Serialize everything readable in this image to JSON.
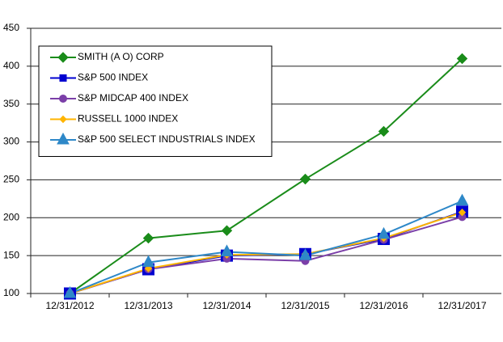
{
  "chart_data": {
    "type": "line",
    "categories": [
      "12/31/2012",
      "12/31/2013",
      "12/31/2014",
      "12/31/2015",
      "12/31/2016",
      "12/31/2017"
    ],
    "series": [
      {
        "name": "SMITH (A O) CORP",
        "color": "#1a8c1a",
        "marker": "diamond",
        "values": [
          100,
          173,
          183,
          251,
          314,
          410
        ]
      },
      {
        "name": "S&P 500 INDEX",
        "color": "#0000d0",
        "marker": "square",
        "values": [
          100,
          132,
          150,
          152,
          172,
          208
        ]
      },
      {
        "name": "S&P MIDCAP 400 INDEX",
        "color": "#7b3fa8",
        "marker": "circle",
        "values": [
          100,
          132,
          146,
          143,
          171,
          201
        ]
      },
      {
        "name": "RUSSELL 1000 INDEX",
        "color": "#ffb400",
        "marker": "small-diamond",
        "values": [
          100,
          133,
          151,
          152,
          173,
          207
        ]
      },
      {
        "name": "S&P 500 SELECT INDUSTRIALS INDEX",
        "color": "#2e88c8",
        "marker": "triangle",
        "values": [
          100,
          141,
          155,
          150,
          178,
          222
        ]
      }
    ],
    "ylim": [
      100,
      450
    ],
    "yticks": [
      100,
      150,
      200,
      250,
      300,
      350,
      400,
      450
    ],
    "grid": true,
    "legend": "upper-left"
  }
}
